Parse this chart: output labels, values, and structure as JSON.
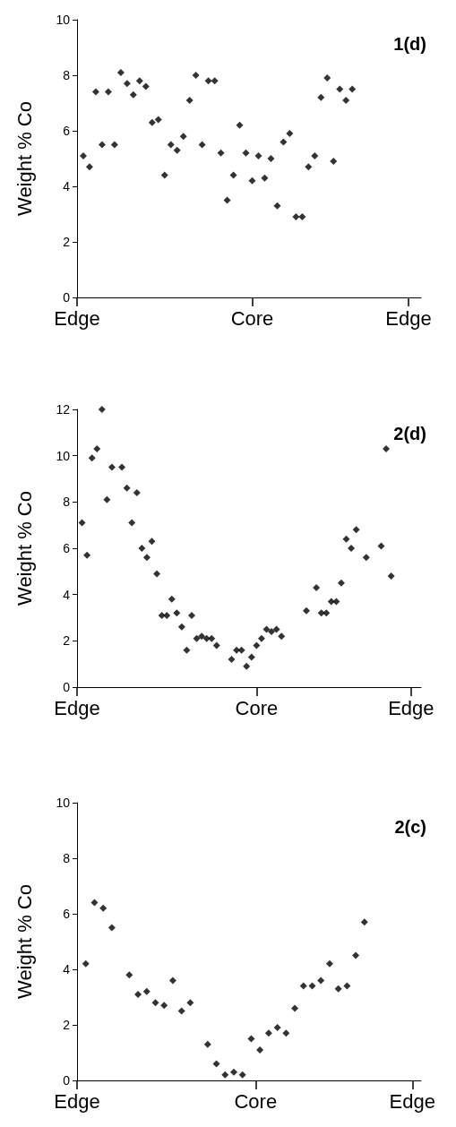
{
  "chart_data": [
    {
      "type": "scatter",
      "title": "1(d)",
      "ylabel": "Weight % Co",
      "marker": "diamond",
      "grid": false,
      "categories": [
        "Edge",
        null,
        null,
        null,
        null,
        null,
        null,
        null,
        null,
        null,
        null,
        null,
        null,
        null,
        null,
        null,
        null,
        null,
        null,
        null,
        null,
        null,
        null,
        null,
        null,
        null,
        null,
        null,
        "Core",
        null,
        null,
        null,
        null,
        null,
        null,
        null,
        null,
        null,
        null,
        null,
        null,
        null,
        null,
        null,
        null,
        null,
        null,
        null,
        null,
        null,
        null,
        null,
        null,
        "Edge",
        null,
        null
      ],
      "ylim": [
        0,
        10
      ],
      "yticks": [
        0,
        2,
        4,
        6,
        8,
        10
      ],
      "series": [
        {
          "color": "#000000",
          "values": [
            null,
            5.1,
            4.7,
            7.4,
            5.5,
            7.4,
            5.5,
            8.1,
            7.7,
            7.3,
            7.8,
            7.6,
            6.3,
            6.4,
            4.4,
            5.5,
            5.3,
            5.8,
            7.1,
            8.0,
            5.5,
            7.8,
            7.8,
            5.2,
            3.5,
            4.4,
            6.2,
            5.2,
            4.2,
            5.1,
            4.3,
            5.0,
            3.3,
            5.6,
            5.9,
            2.9,
            2.9,
            4.7,
            5.1,
            7.2,
            7.9,
            4.9,
            7.5,
            7.1,
            7.5,
            null,
            null,
            null,
            null,
            null,
            null,
            null,
            null,
            null,
            null,
            null
          ]
        }
      ]
    },
    {
      "type": "scatter",
      "title": "2(d)",
      "ylabel": "Weight % Co",
      "marker": "diamond",
      "grid": false,
      "categories": [
        "Edge",
        null,
        null,
        null,
        null,
        null,
        null,
        null,
        null,
        null,
        null,
        null,
        null,
        null,
        null,
        null,
        null,
        null,
        null,
        null,
        null,
        null,
        null,
        null,
        null,
        null,
        null,
        null,
        null,
        null,
        null,
        null,
        null,
        null,
        null,
        null,
        "Core",
        null,
        null,
        null,
        null,
        null,
        null,
        null,
        null,
        null,
        null,
        null,
        null,
        null,
        null,
        null,
        null,
        null,
        null,
        null,
        null,
        null,
        null,
        null,
        null,
        null,
        null,
        null,
        null,
        null,
        null,
        "Edge",
        null,
        null
      ],
      "ylim": [
        0,
        12
      ],
      "yticks": [
        0,
        2,
        4,
        6,
        8,
        10,
        12
      ],
      "series": [
        {
          "color": "#000000",
          "values": [
            null,
            7.1,
            5.7,
            9.9,
            10.3,
            12.0,
            8.1,
            9.5,
            null,
            9.5,
            8.6,
            7.1,
            8.4,
            6.0,
            5.6,
            6.3,
            4.9,
            3.1,
            3.1,
            3.8,
            3.2,
            2.6,
            1.6,
            3.1,
            2.1,
            2.2,
            2.1,
            2.1,
            1.8,
            null,
            null,
            1.2,
            1.6,
            1.6,
            0.9,
            1.3,
            1.8,
            2.1,
            2.5,
            2.4,
            2.5,
            2.2,
            null,
            null,
            null,
            null,
            3.3,
            null,
            4.3,
            3.2,
            3.2,
            3.7,
            3.7,
            4.5,
            6.4,
            6.0,
            6.8,
            null,
            5.6,
            null,
            null,
            6.1,
            10.3,
            4.8,
            null,
            null,
            null,
            null,
            null,
            null
          ]
        }
      ]
    },
    {
      "type": "scatter",
      "title": "2(c)",
      "ylabel": "Weight % Co",
      "marker": "diamond",
      "grid": false,
      "categories": [
        "Edge",
        null,
        null,
        null,
        null,
        null,
        null,
        null,
        null,
        null,
        null,
        null,
        null,
        null,
        null,
        null,
        null,
        null,
        null,
        null,
        null,
        null,
        null,
        null,
        null,
        null,
        null,
        null,
        null,
        null,
        null,
        null,
        null,
        null,
        null,
        null,
        null,
        null,
        null,
        null,
        null,
        "Core",
        null,
        null,
        null,
        null,
        null,
        null,
        null,
        null,
        null,
        null,
        null,
        null,
        null,
        null,
        null,
        null,
        null,
        null,
        null,
        null,
        null,
        null,
        null,
        null,
        null,
        null,
        null,
        null,
        null,
        null,
        null,
        null,
        null,
        null,
        null,
        "Edge",
        null,
        null
      ],
      "ylim": [
        0,
        10
      ],
      "yticks": [
        0,
        2,
        4,
        6,
        8,
        10
      ],
      "series": [
        {
          "color": "#000000",
          "values": [
            null,
            null,
            4.2,
            null,
            6.4,
            null,
            6.2,
            null,
            5.5,
            null,
            null,
            null,
            3.8,
            null,
            3.1,
            null,
            3.2,
            null,
            2.8,
            null,
            2.7,
            null,
            3.6,
            null,
            2.5,
            null,
            2.8,
            null,
            null,
            null,
            1.3,
            null,
            0.6,
            null,
            0.2,
            null,
            0.3,
            null,
            0.2,
            null,
            1.5,
            null,
            1.1,
            null,
            1.7,
            null,
            1.9,
            null,
            1.7,
            null,
            2.6,
            null,
            3.4,
            null,
            3.4,
            null,
            3.6,
            null,
            4.2,
            null,
            3.3,
            null,
            3.4,
            null,
            4.5,
            null,
            5.7,
            null,
            null,
            null,
            null,
            null,
            null,
            null,
            null,
            null,
            null,
            null,
            null,
            null
          ]
        }
      ]
    }
  ]
}
